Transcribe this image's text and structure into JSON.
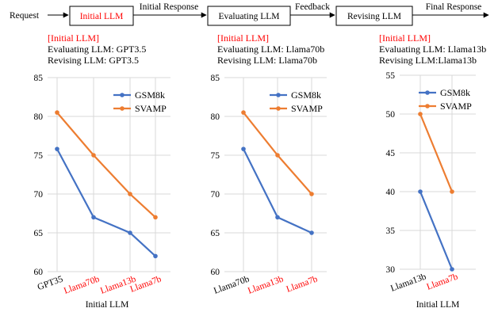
{
  "colors": {
    "red": "#ff0000",
    "gsm8k": "#4472c4",
    "svamp": "#ed7d31"
  },
  "flow": {
    "request": "Request",
    "initial_llm": "Initial LLM",
    "initial_response": "Initial Response",
    "evaluating_llm": "Evaluating LLM",
    "feedback": "Feedback",
    "revising_llm": "Revising LLM",
    "final_response": "Final Response"
  },
  "chart_data": [
    {
      "type": "line",
      "annotation": [
        "[Initial LLM]",
        "Evaluating LLM: GPT3.5",
        "Revising LLM: GPT3.5"
      ],
      "categories": [
        "GPT35",
        "Llama70b",
        "Llama13b",
        "Llama7b"
      ],
      "category_colors": [
        "#000000",
        "#ff0000",
        "#ff0000",
        "#ff0000"
      ],
      "ylim": [
        60,
        85
      ],
      "yticks": [
        60,
        65,
        70,
        75,
        80,
        85
      ],
      "xlabel": "Initial LLM",
      "legend": "top-right",
      "series": [
        {
          "name": "GSM8k",
          "color": "#4472c4",
          "values": [
            75.8,
            67,
            65,
            62
          ]
        },
        {
          "name": "SVAMP",
          "color": "#ed7d31",
          "values": [
            80.5,
            75,
            70,
            67
          ]
        }
      ]
    },
    {
      "type": "line",
      "annotation": [
        "[Initial LLM]",
        "Evaluating LLM: Llama70b",
        "Revising LLM: Llama70b"
      ],
      "categories": [
        "Llama70b",
        "Llama13b",
        "Llama7b"
      ],
      "category_colors": [
        "#000000",
        "#ff0000",
        "#ff0000"
      ],
      "ylim": [
        60,
        85
      ],
      "yticks": [
        60,
        65,
        70,
        75,
        80,
        85
      ],
      "xlabel": "",
      "legend": "top-right",
      "series": [
        {
          "name": "GSM8k",
          "color": "#4472c4",
          "values": [
            75.8,
            67,
            65
          ]
        },
        {
          "name": "SVAMP",
          "color": "#ed7d31",
          "values": [
            80.5,
            75,
            70
          ]
        }
      ]
    },
    {
      "type": "line",
      "annotation": [
        "[Initial LLM]",
        "Evaluating LLM: Llama13b",
        "Revising LLM:Llama13b"
      ],
      "categories": [
        "Llama13b",
        "Llama7b"
      ],
      "category_colors": [
        "#000000",
        "#ff0000"
      ],
      "ylim": [
        30,
        55
      ],
      "yticks": [
        30,
        35,
        40,
        45,
        50,
        55
      ],
      "xlabel": "Initial LLM",
      "legend": "top-right",
      "series": [
        {
          "name": "GSM8k",
          "color": "#4472c4",
          "values": [
            40,
            30
          ]
        },
        {
          "name": "SVAMP",
          "color": "#ed7d31",
          "values": [
            50,
            40
          ]
        }
      ]
    }
  ]
}
